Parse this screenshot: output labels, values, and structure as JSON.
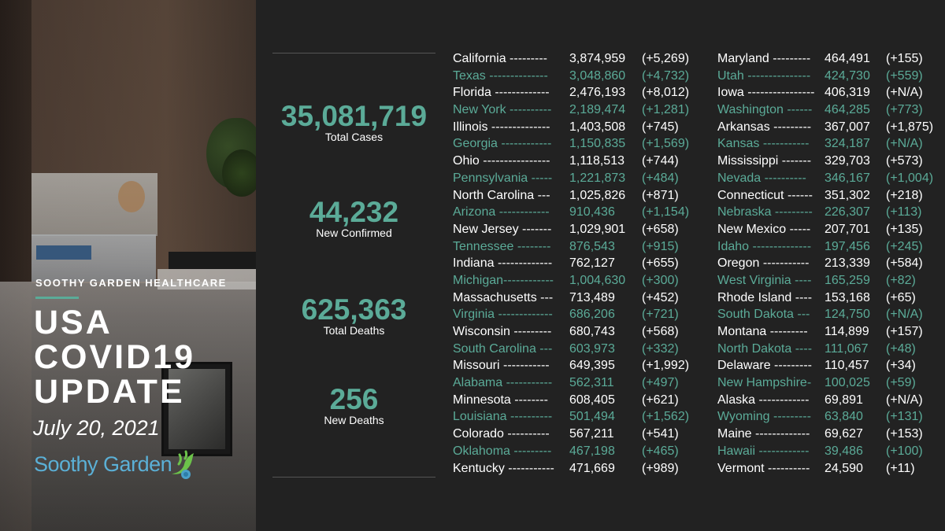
{
  "brand": "SOOTHY GARDEN HEALTHCARE",
  "headline": [
    "USA",
    "COVID19",
    "UPDATE"
  ],
  "date": "July 20, 2021",
  "logo_text": "Soothy Garden",
  "summary": [
    {
      "value": "35,081,719",
      "label": "Total Cases"
    },
    {
      "value": "44,232",
      "label": "New Confirmed"
    },
    {
      "value": "625,363",
      "label": "Total Deaths"
    },
    {
      "value": "256",
      "label": "New Deaths"
    }
  ],
  "colors": {
    "accent": "#5bab98",
    "background": "#222222",
    "text": "#ffffff"
  },
  "states_left": [
    {
      "name": "California ---------",
      "total": "3,874,959",
      "change": "(+5,269)"
    },
    {
      "name": "Texas --------------",
      "total": "3,048,860",
      "change": "(+4,732)"
    },
    {
      "name": "Florida -------------",
      "total": "2,476,193",
      "change": "(+8,012)"
    },
    {
      "name": "New York ----------",
      "total": "2,189,474",
      "change": "(+1,281)"
    },
    {
      "name": "Illinois --------------",
      "total": "1,403,508",
      "change": "(+745)"
    },
    {
      "name": "Georgia ------------",
      "total": "1,150,835",
      "change": "(+1,569)"
    },
    {
      "name": "Ohio ----------------",
      "total": "1,118,513",
      "change": "(+744)"
    },
    {
      "name": "Pennsylvania -----",
      "total": "1,221,873",
      "change": "(+484)"
    },
    {
      "name": "North Carolina ---",
      "total": "1,025,826",
      "change": "(+871)"
    },
    {
      "name": "Arizona ------------",
      "total": "910,436",
      "change": "(+1,154)"
    },
    {
      "name": "New Jersey -------",
      "total": "1,029,901",
      "change": "(+658)"
    },
    {
      "name": "Tennessee --------",
      "total": "876,543",
      "change": "(+915)"
    },
    {
      "name": "Indiana -------------",
      "total": "762,127",
      "change": "(+655)"
    },
    {
      "name": "Michigan------------",
      "total": "1,004,630",
      "change": "(+300)"
    },
    {
      "name": "Massachusetts ---",
      "total": "713,489",
      "change": "(+452)"
    },
    {
      "name": "Virginia -------------",
      "total": "686,206",
      "change": "(+721)"
    },
    {
      "name": "Wisconsin ---------",
      "total": "680,743",
      "change": "(+568)"
    },
    {
      "name": "South Carolina ---",
      "total": "603,973",
      "change": "(+332)"
    },
    {
      "name": "Missouri -----------",
      "total": "649,395",
      "change": "(+1,992)"
    },
    {
      "name": "Alabama -----------",
      "total": "562,311",
      "change": "(+497)"
    },
    {
      "name": "Minnesota --------",
      "total": "608,405",
      "change": "(+621)"
    },
    {
      "name": "Louisiana ----------",
      "total": "501,494",
      "change": "(+1,562)"
    },
    {
      "name": "Colorado ----------",
      "total": "567,211",
      "change": "(+541)"
    },
    {
      "name": "Oklahoma ---------",
      "total": "467,198",
      "change": "(+465)"
    },
    {
      "name": "Kentucky -----------",
      "total": "471,669",
      "change": "(+989)"
    }
  ],
  "states_right": [
    {
      "name": "Maryland ---------",
      "total": "464,491",
      "change": "(+155)"
    },
    {
      "name": "Utah ---------------",
      "total": "424,730",
      "change": "(+559)"
    },
    {
      "name": "Iowa ----------------",
      "total": "406,319",
      "change": "(+N/A)"
    },
    {
      "name": "Washington ------",
      "total": "464,285",
      "change": "(+773)"
    },
    {
      "name": "Arkansas ---------",
      "total": "367,007",
      "change": "(+1,875)"
    },
    {
      "name": "Kansas -----------",
      "total": "324,187",
      "change": "(+N/A)"
    },
    {
      "name": "Mississippi -------",
      "total": "329,703",
      "change": "(+573)"
    },
    {
      "name": "Nevada ----------",
      "total": "346,167",
      "change": "(+1,004)"
    },
    {
      "name": "Connecticut ------",
      "total": "351,302",
      "change": "(+218)"
    },
    {
      "name": "Nebraska ---------",
      "total": "226,307",
      "change": "(+113)"
    },
    {
      "name": "New Mexico -----",
      "total": "207,701",
      "change": "(+135)"
    },
    {
      "name": "Idaho --------------",
      "total": "197,456",
      "change": "(+245)"
    },
    {
      "name": "Oregon -----------",
      "total": "213,339",
      "change": "(+584)"
    },
    {
      "name": "West Virginia ----",
      "total": "165,259",
      "change": "(+82)"
    },
    {
      "name": "Rhode Island ----",
      "total": "153,168",
      "change": "(+65)"
    },
    {
      "name": "South Dakota ---",
      "total": "124,750",
      "change": "(+N/A)"
    },
    {
      "name": "Montana ---------",
      "total": "114,899",
      "change": "(+157)"
    },
    {
      "name": "North Dakota ----",
      "total": "111,067",
      "change": "(+48)"
    },
    {
      "name": "Delaware ---------",
      "total": "110,457",
      "change": "(+34)"
    },
    {
      "name": "New Hampshire-",
      "total": "100,025",
      "change": "(+59)"
    },
    {
      "name": "Alaska ------------",
      "total": "69,891",
      "change": "(+N/A)"
    },
    {
      "name": "Wyoming ---------",
      "total": "63,840",
      "change": "(+131)"
    },
    {
      "name": "Maine -------------",
      "total": "69,627",
      "change": "(+153)"
    },
    {
      "name": "Hawaii ------------",
      "total": "39,486",
      "change": "(+100)"
    },
    {
      "name": "Vermont ----------",
      "total": "24,590",
      "change": "(+11)"
    }
  ]
}
